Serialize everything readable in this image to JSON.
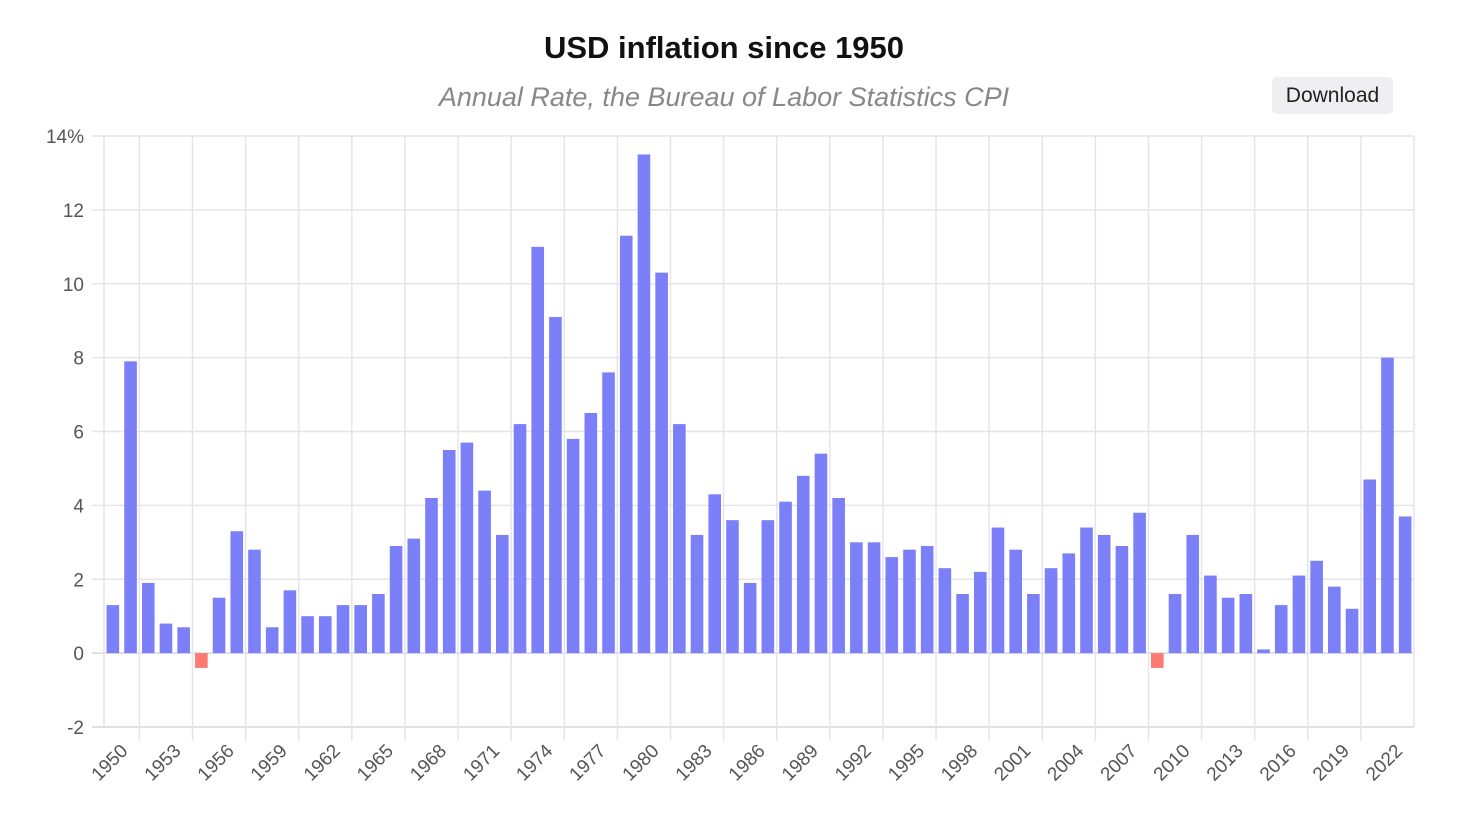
{
  "header": {
    "title": "USD inflation since 1950",
    "subtitle": "Annual Rate, the Bureau of Labor Statistics CPI"
  },
  "toolbar": {
    "download_label": "Download"
  },
  "chart_data": {
    "type": "bar",
    "title": "USD inflation since 1950",
    "subtitle": "Annual Rate, the Bureau of Labor Statistics CPI",
    "xlabel": "",
    "ylabel": "",
    "ylim": [
      -2,
      14
    ],
    "yticks": [
      "-2",
      "0",
      "2",
      "4",
      "6",
      "8",
      "10",
      "12",
      "14%"
    ],
    "grid": true,
    "colors": {
      "positive": "#7b7ff8",
      "negative": "#fb7a72"
    },
    "categories": [
      1950,
      1951,
      1952,
      1953,
      1954,
      1955,
      1956,
      1957,
      1958,
      1959,
      1960,
      1961,
      1962,
      1963,
      1964,
      1965,
      1966,
      1967,
      1968,
      1969,
      1970,
      1971,
      1972,
      1973,
      1974,
      1975,
      1976,
      1977,
      1978,
      1979,
      1980,
      1981,
      1982,
      1983,
      1984,
      1985,
      1986,
      1987,
      1988,
      1989,
      1990,
      1991,
      1992,
      1993,
      1994,
      1995,
      1996,
      1997,
      1998,
      1999,
      2000,
      2001,
      2002,
      2003,
      2004,
      2005,
      2006,
      2007,
      2008,
      2009,
      2010,
      2011,
      2012,
      2013,
      2014,
      2015,
      2016,
      2017,
      2018,
      2019,
      2020,
      2021,
      2022,
      2023
    ],
    "values": [
      1.3,
      7.9,
      1.9,
      0.8,
      0.7,
      -0.4,
      1.5,
      3.3,
      2.8,
      0.7,
      1.7,
      1.0,
      1.0,
      1.3,
      1.3,
      1.6,
      2.9,
      3.1,
      4.2,
      5.5,
      5.7,
      4.4,
      3.2,
      6.2,
      11.0,
      9.1,
      5.8,
      6.5,
      7.6,
      11.3,
      13.5,
      10.3,
      6.2,
      3.2,
      4.3,
      3.6,
      1.9,
      3.6,
      4.1,
      4.8,
      5.4,
      4.2,
      3.0,
      3.0,
      2.6,
      2.8,
      2.9,
      2.3,
      1.6,
      2.2,
      3.4,
      2.8,
      1.6,
      2.3,
      2.7,
      3.4,
      3.2,
      2.9,
      3.8,
      -0.4,
      1.6,
      3.2,
      2.1,
      1.5,
      1.6,
      0.1,
      1.3,
      2.1,
      2.5,
      1.8,
      1.2,
      4.7,
      8.0,
      3.7
    ],
    "xtick_labels": [
      "1950",
      "1953",
      "1956",
      "1959",
      "1962",
      "1965",
      "1968",
      "1971",
      "1974",
      "1977",
      "1980",
      "1983",
      "1986",
      "1989",
      "1992",
      "1995",
      "1998",
      "2001",
      "2004",
      "2007",
      "2010",
      "2013",
      "2016",
      "2019",
      "2022"
    ]
  }
}
